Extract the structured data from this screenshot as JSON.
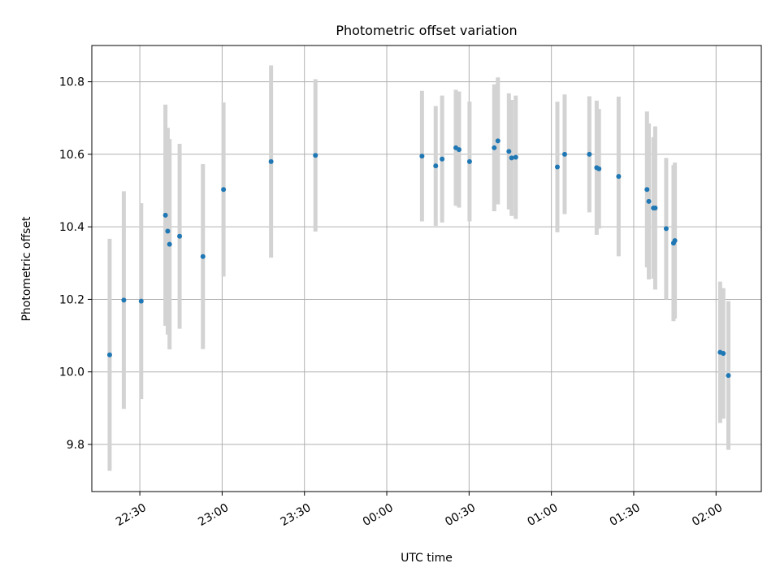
{
  "chart_data": {
    "type": "scatter",
    "title": "Photometric offset variation",
    "xlabel": "UTC time",
    "ylabel": "Photometric offset",
    "grid": true,
    "legend": "none",
    "colors": {
      "point": "#1f77b4",
      "errorbar": "#d3d3d3",
      "grid": "#b0b0b0",
      "axes": "#000000"
    },
    "xlim": [
      "2000-01-01T22:12:30",
      "2000-01-02T02:16:30"
    ],
    "ylim": [
      9.67,
      10.9
    ],
    "x_ticks": [
      {
        "value": "2000-01-01T22:30",
        "label": "22:30"
      },
      {
        "value": "2000-01-01T23:00",
        "label": "23:00"
      },
      {
        "value": "2000-01-01T23:30",
        "label": "23:30"
      },
      {
        "value": "2000-01-02T00:00",
        "label": "00:00"
      },
      {
        "value": "2000-01-02T00:30",
        "label": "00:30"
      },
      {
        "value": "2000-01-02T01:00",
        "label": "01:00"
      },
      {
        "value": "2000-01-02T01:30",
        "label": "01:30"
      },
      {
        "value": "2000-01-02T02:00",
        "label": "02:00"
      }
    ],
    "y_ticks": [
      {
        "value": 9.8,
        "label": "9.8"
      },
      {
        "value": 10.0,
        "label": "10.0"
      },
      {
        "value": 10.2,
        "label": "10.2"
      },
      {
        "value": 10.4,
        "label": "10.4"
      },
      {
        "value": 10.6,
        "label": "10.6"
      },
      {
        "value": 10.8,
        "label": "10.8"
      }
    ],
    "points": [
      {
        "x": "2000-01-01T22:19:00",
        "y": 10.047,
        "err": 0.32
      },
      {
        "x": "2000-01-01T22:24:10",
        "y": 10.198,
        "err": 0.3
      },
      {
        "x": "2000-01-01T22:30:30",
        "y": 10.195,
        "err": 0.27
      },
      {
        "x": "2000-01-01T22:39:20",
        "y": 10.432,
        "err": 0.305
      },
      {
        "x": "2000-01-01T22:40:10",
        "y": 10.388,
        "err": 0.285
      },
      {
        "x": "2000-01-01T22:40:50",
        "y": 10.352,
        "err": 0.29
      },
      {
        "x": "2000-01-01T22:44:30",
        "y": 10.374,
        "err": 0.255
      },
      {
        "x": "2000-01-01T22:53:00",
        "y": 10.318,
        "err": 0.255
      },
      {
        "x": "2000-01-01T23:00:30",
        "y": 10.503,
        "err": 0.24
      },
      {
        "x": "2000-01-01T23:17:50",
        "y": 10.58,
        "err": 0.265
      },
      {
        "x": "2000-01-01T23:34:00",
        "y": 10.597,
        "err": 0.21
      },
      {
        "x": "2000-01-02T00:12:50",
        "y": 10.595,
        "err": 0.18
      },
      {
        "x": "2000-01-02T00:17:50",
        "y": 10.568,
        "err": 0.165
      },
      {
        "x": "2000-01-02T00:20:10",
        "y": 10.587,
        "err": 0.175
      },
      {
        "x": "2000-01-02T00:25:10",
        "y": 10.618,
        "err": 0.16
      },
      {
        "x": "2000-01-02T00:26:20",
        "y": 10.613,
        "err": 0.16
      },
      {
        "x": "2000-01-02T00:30:10",
        "y": 10.58,
        "err": 0.165
      },
      {
        "x": "2000-01-02T00:39:10",
        "y": 10.618,
        "err": 0.175
      },
      {
        "x": "2000-01-02T00:40:30",
        "y": 10.637,
        "err": 0.175
      },
      {
        "x": "2000-01-02T00:44:30",
        "y": 10.608,
        "err": 0.16
      },
      {
        "x": "2000-01-02T00:45:30",
        "y": 10.59,
        "err": 0.16
      },
      {
        "x": "2000-01-02T00:47:00",
        "y": 10.592,
        "err": 0.17
      },
      {
        "x": "2000-01-02T01:02:10",
        "y": 10.565,
        "err": 0.18
      },
      {
        "x": "2000-01-02T01:04:50",
        "y": 10.6,
        "err": 0.165
      },
      {
        "x": "2000-01-02T01:13:50",
        "y": 10.6,
        "err": 0.16
      },
      {
        "x": "2000-01-02T01:16:30",
        "y": 10.563,
        "err": 0.185
      },
      {
        "x": "2000-01-02T01:17:20",
        "y": 10.56,
        "err": 0.165
      },
      {
        "x": "2000-01-02T01:24:30",
        "y": 10.539,
        "err": 0.22
      },
      {
        "x": "2000-01-02T01:34:50",
        "y": 10.503,
        "err": 0.215
      },
      {
        "x": "2000-01-02T01:35:30",
        "y": 10.47,
        "err": 0.215
      },
      {
        "x": "2000-01-02T01:37:10",
        "y": 10.452,
        "err": 0.195
      },
      {
        "x": "2000-01-02T01:37:50",
        "y": 10.452,
        "err": 0.225
      },
      {
        "x": "2000-01-02T01:41:50",
        "y": 10.395,
        "err": 0.195
      },
      {
        "x": "2000-01-02T01:44:30",
        "y": 10.355,
        "err": 0.215
      },
      {
        "x": "2000-01-02T01:45:00",
        "y": 10.362,
        "err": 0.215
      },
      {
        "x": "2000-01-02T02:01:30",
        "y": 10.054,
        "err": 0.195
      },
      {
        "x": "2000-01-02T02:02:40",
        "y": 10.051,
        "err": 0.18
      },
      {
        "x": "2000-01-02T02:04:30",
        "y": 9.99,
        "err": 0.205
      }
    ]
  }
}
